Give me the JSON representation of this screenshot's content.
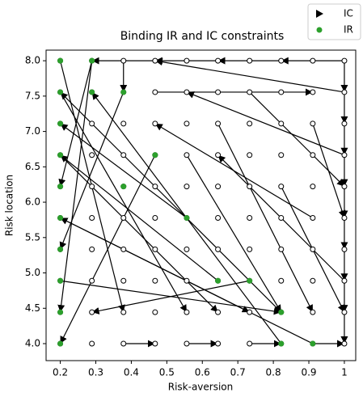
{
  "chart_data": {
    "type": "scatter",
    "title": "Binding IR and IC constraints",
    "xlabel": "Risk-aversion",
    "ylabel": "Risk location",
    "xlim": [
      0.16,
      1.032
    ],
    "ylim": [
      3.76,
      8.15
    ],
    "xticks": [
      0.2,
      0.3,
      0.4,
      0.5,
      0.6,
      0.7,
      0.8,
      0.9,
      1.0
    ],
    "yticks": [
      {
        "value": 4,
        "label": "4.0"
      },
      {
        "value": 4.5,
        "label": "4.5"
      },
      {
        "value": 5,
        "label": "5.0"
      },
      {
        "value": 5.5,
        "label": "5.5"
      },
      {
        "value": 6,
        "label": "6.0"
      },
      {
        "value": 6.5,
        "label": "6.5"
      },
      {
        "value": 7,
        "label": "7.0"
      },
      {
        "value": 7.5,
        "label": "7.5"
      },
      {
        "value": 8,
        "label": "8.0"
      }
    ],
    "legend": "upper right",
    "series": [
      {
        "name": "IC",
        "color": "#000000",
        "node_x": [
          0.2,
          0.289,
          0.378,
          0.467,
          0.556,
          0.644,
          0.733,
          0.822,
          0.911,
          1.0
        ],
        "node_y": [
          4.0,
          4.444,
          4.889,
          5.333,
          5.778,
          6.222,
          6.667,
          7.111,
          7.556,
          8.0
        ],
        "edges": [
          [
            0.467,
            8,
            0.289,
            8
          ],
          [
            0.644,
            8,
            0.467,
            8
          ],
          [
            0.822,
            8,
            0.644,
            8
          ],
          [
            1,
            8,
            0.822,
            8
          ],
          [
            1,
            8,
            1,
            7.556
          ],
          [
            1,
            7.556,
            1,
            7.111
          ],
          [
            1,
            7.111,
            1,
            6.667
          ],
          [
            1,
            6.667,
            1,
            6.222
          ],
          [
            1,
            6.222,
            1,
            5.778
          ],
          [
            1,
            5.778,
            1,
            5.333
          ],
          [
            1,
            5.333,
            1,
            4.889
          ],
          [
            1,
            4.889,
            1,
            4.444
          ],
          [
            1,
            4.444,
            1,
            4
          ],
          [
            0.378,
            4,
            0.467,
            4
          ],
          [
            0.556,
            4,
            0.644,
            4
          ],
          [
            0.733,
            4,
            0.822,
            4
          ],
          [
            0.911,
            4,
            1,
            4
          ],
          [
            0.289,
            8,
            0.2,
            4.444
          ],
          [
            0.289,
            8,
            0.2,
            6.222
          ],
          [
            0.378,
            7.556,
            0.2,
            5.333
          ],
          [
            0.467,
            6.667,
            0.2,
            4
          ],
          [
            0.556,
            5.778,
            0.2,
            7.111
          ],
          [
            0.644,
            4.889,
            0.2,
            6.667
          ],
          [
            0.822,
            4.444,
            0.2,
            7.556
          ],
          [
            0.911,
            4,
            0.2,
            5.778
          ],
          [
            0.822,
            4,
            0.289,
            7.556
          ],
          [
            0.733,
            4.889,
            0.289,
            4.444
          ],
          [
            0.2,
            8,
            0.378,
            4.444
          ],
          [
            0.2,
            7.556,
            0.556,
            4.444
          ],
          [
            0.2,
            6.667,
            0.644,
            4.444
          ],
          [
            0.2,
            5.778,
            0.733,
            4.444
          ],
          [
            0.2,
            4.889,
            0.822,
            4.444
          ],
          [
            1,
            7.556,
            0.467,
            8
          ],
          [
            1,
            6.667,
            0.556,
            7.556
          ],
          [
            0.911,
            5.778,
            0.467,
            7.111
          ],
          [
            1,
            4.889,
            0.644,
            6.667
          ],
          [
            0.911,
            7.111,
            1,
            5.778
          ],
          [
            0.733,
            7.556,
            1,
            6.222
          ],
          [
            0.644,
            7.111,
            0.911,
            4.444
          ],
          [
            0.822,
            6.222,
            1,
            4.444
          ],
          [
            0.556,
            6.667,
            0.822,
            4.444
          ],
          [
            0.467,
            7.556,
            0.911,
            7.556
          ],
          [
            0.378,
            8,
            0.378,
            7.556
          ]
        ]
      },
      {
        "name": "IR",
        "color": "#2ca02c",
        "x": [
          0.2,
          0.2,
          0.2,
          0.2,
          0.2,
          0.2,
          0.2,
          0.2,
          0.2,
          0.2,
          0.289,
          0.378,
          0.467,
          0.556,
          0.644,
          0.733,
          0.822,
          0.822,
          0.911,
          0.289,
          0.378
        ],
        "y": [
          4.0,
          4.444,
          4.889,
          5.333,
          5.778,
          6.222,
          6.667,
          7.111,
          7.556,
          8.0,
          8.0,
          7.556,
          6.667,
          5.778,
          4.889,
          4.889,
          4.444,
          4.0,
          4.0,
          7.556,
          6.222
        ]
      }
    ]
  }
}
